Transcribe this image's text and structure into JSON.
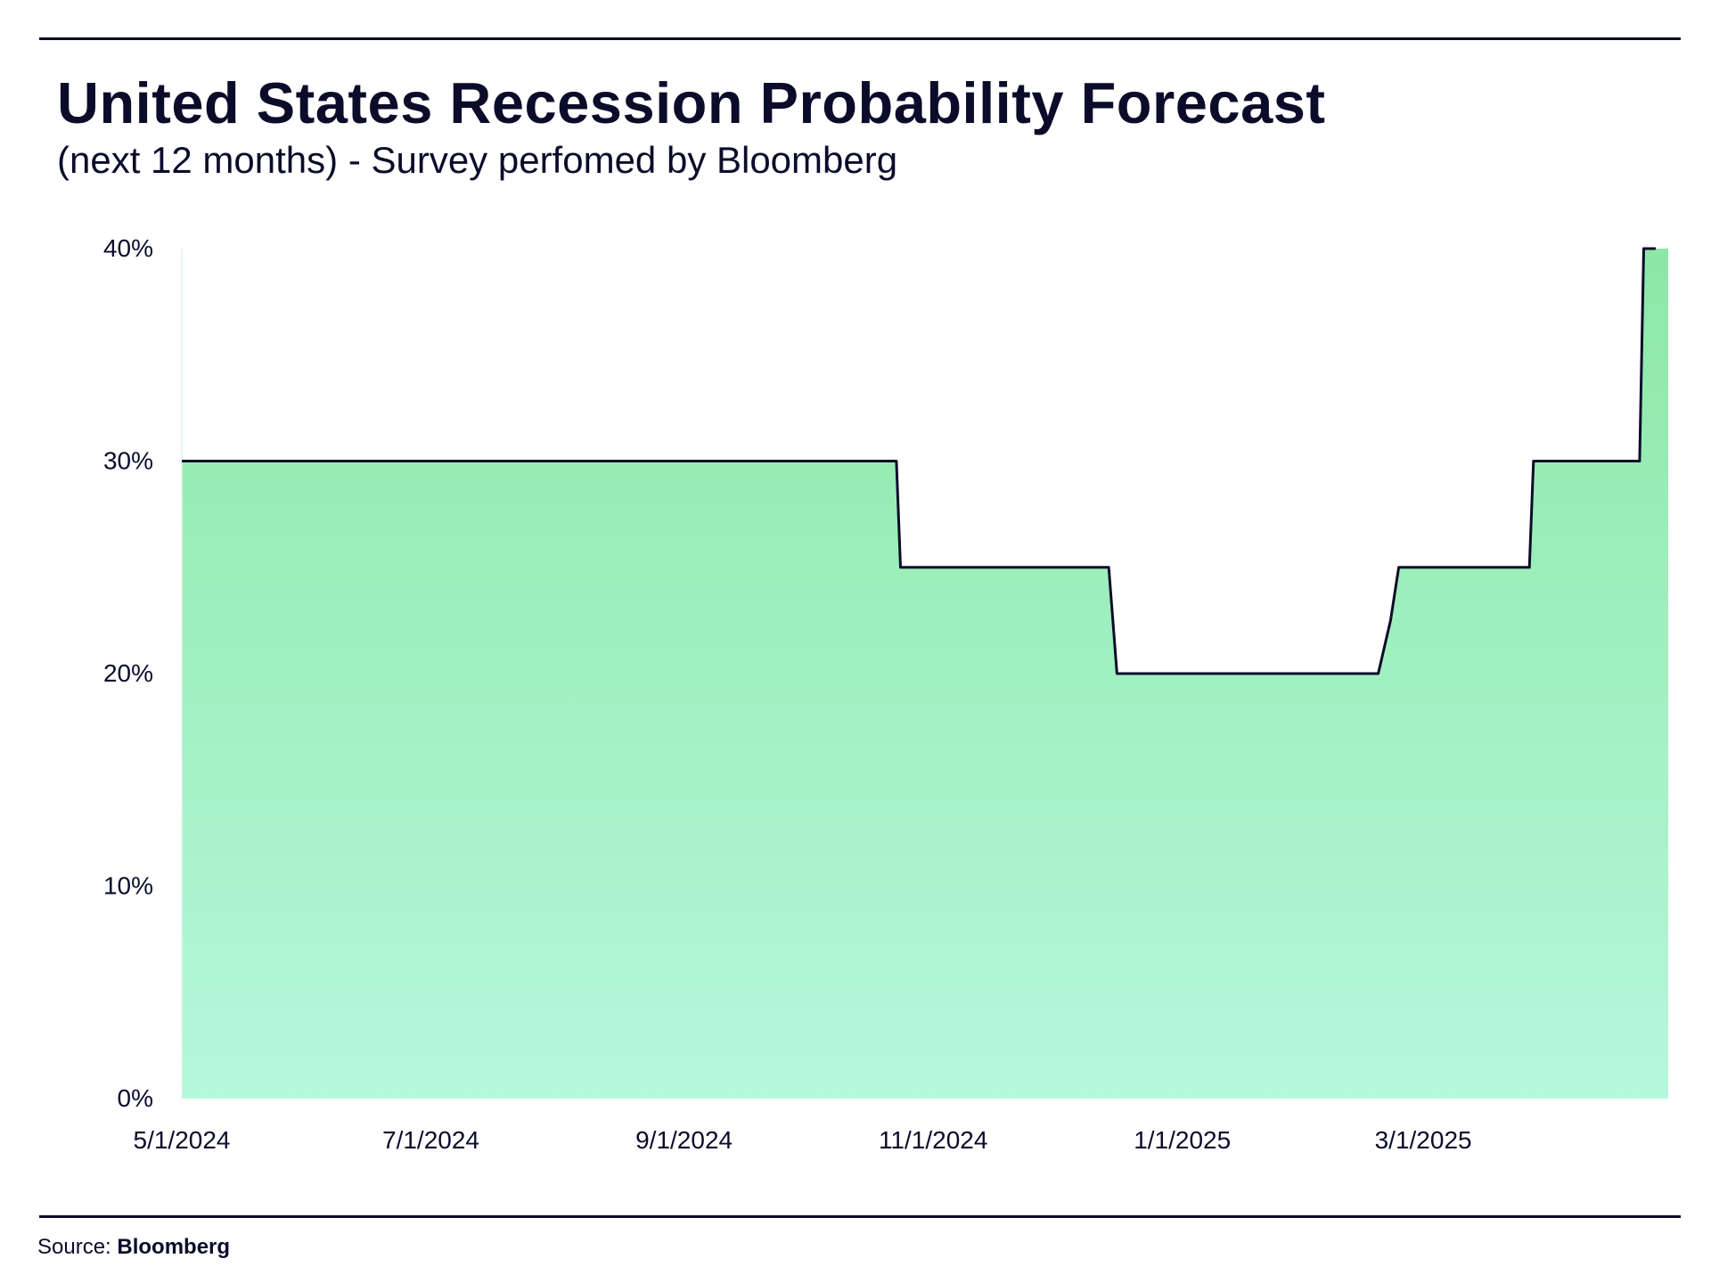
{
  "header": {
    "title": "United States Recession Probability Forecast",
    "subtitle": "(next 12 months) - Survey perfomed by Bloomberg"
  },
  "footer": {
    "source_label": "Source:",
    "source_value": "Bloomberg"
  },
  "colors": {
    "fill_top": "#8ce8a6",
    "fill_bottom": "#b5f8dc",
    "line": "#0b0c2a",
    "text": "#0b0c2a"
  },
  "chart_data": {
    "type": "area",
    "title": "United States Recession Probability Forecast",
    "subtitle": "(next 12 months) - Survey perfomed by Bloomberg",
    "xlabel": "",
    "ylabel": "",
    "x_ticks": [
      "5/1/2024",
      "7/1/2024",
      "9/1/2024",
      "11/1/2024",
      "1/1/2025",
      "3/1/2025"
    ],
    "y_ticks": [
      "0%",
      "10%",
      "20%",
      "30%",
      "40%"
    ],
    "xlim": [
      "2024-05-01",
      "2025-04-30"
    ],
    "ylim": [
      0,
      40
    ],
    "grid": false,
    "legend": "none",
    "series": [
      {
        "points": [
          {
            "x": "2024-05-01",
            "y": 30
          },
          {
            "x": "2024-10-23",
            "y": 30
          },
          {
            "x": "2024-10-24",
            "y": 25
          },
          {
            "x": "2024-12-14",
            "y": 25
          },
          {
            "x": "2024-12-16",
            "y": 20
          },
          {
            "x": "2025-02-18",
            "y": 20
          },
          {
            "x": "2025-02-21",
            "y": 22.5
          },
          {
            "x": "2025-02-23",
            "y": 25
          },
          {
            "x": "2025-03-27",
            "y": 25
          },
          {
            "x": "2025-03-28",
            "y": 30
          },
          {
            "x": "2025-04-23",
            "y": 30
          },
          {
            "x": "2025-04-24",
            "y": 40
          },
          {
            "x": "2025-04-30",
            "y": 40
          }
        ]
      }
    ]
  }
}
